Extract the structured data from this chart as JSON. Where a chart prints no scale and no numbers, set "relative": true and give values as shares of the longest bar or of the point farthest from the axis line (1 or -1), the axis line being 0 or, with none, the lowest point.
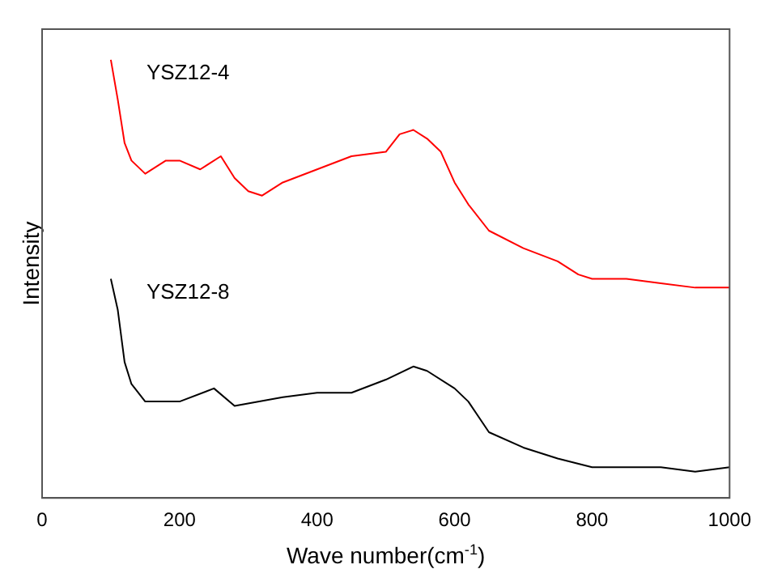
{
  "chart_data": {
    "type": "line",
    "xlabel": "Wave number(cm$^{-1}$)",
    "ylabel": "Intensity",
    "relative": true,
    "xlim": [
      0,
      1000
    ],
    "xticks": [
      0,
      200,
      400,
      600,
      800,
      1000
    ],
    "tick_labels": "x",
    "grid": false,
    "legend": false,
    "marker": "none",
    "line_style": "solid",
    "series": [
      {
        "name": "YSZ12-4",
        "color": "#ff0000",
        "x": [
          100,
          110,
          120,
          130,
          150,
          180,
          200,
          230,
          260,
          280,
          300,
          320,
          350,
          400,
          450,
          500,
          520,
          540,
          560,
          580,
          600,
          620,
          650,
          700,
          750,
          780,
          800,
          850,
          900,
          950,
          1000
        ],
        "values": [
          1.0,
          0.91,
          0.81,
          0.77,
          0.74,
          0.77,
          0.77,
          0.75,
          0.78,
          0.73,
          0.7,
          0.69,
          0.72,
          0.75,
          0.78,
          0.79,
          0.83,
          0.84,
          0.82,
          0.79,
          0.72,
          0.67,
          0.61,
          0.57,
          0.54,
          0.51,
          0.5,
          0.5,
          0.49,
          0.48,
          0.48
        ]
      },
      {
        "name": "YSZ12-8",
        "color": "#000000",
        "x": [
          100,
          110,
          120,
          130,
          150,
          200,
          250,
          280,
          350,
          400,
          450,
          500,
          540,
          560,
          600,
          620,
          650,
          700,
          750,
          800,
          850,
          900,
          950,
          1000
        ],
        "values": [
          0.5,
          0.43,
          0.31,
          0.26,
          0.22,
          0.22,
          0.25,
          0.21,
          0.23,
          0.24,
          0.24,
          0.27,
          0.3,
          0.29,
          0.25,
          0.22,
          0.15,
          0.115,
          0.09,
          0.07,
          0.07,
          0.07,
          0.06,
          0.07
        ]
      }
    ]
  }
}
